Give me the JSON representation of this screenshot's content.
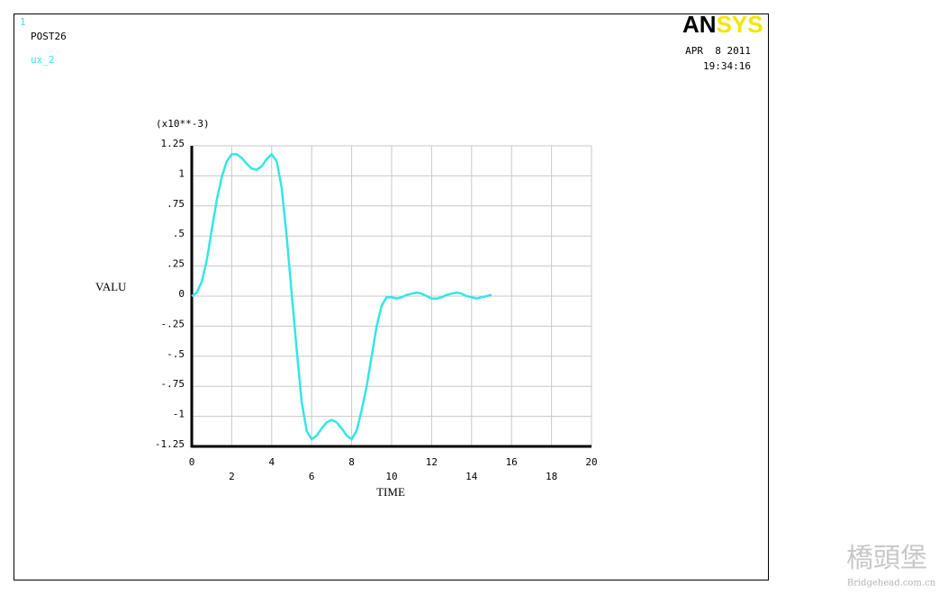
{
  "header": {
    "window_number": "1",
    "module": "POST26",
    "logo": "ANSYS",
    "date": "APR  8 2011",
    "time": "19:34:16"
  },
  "watermark": {
    "text": "橋頭堡",
    "site": "Bridgehead.com.cn"
  },
  "chart_data": {
    "type": "line",
    "multiplier": "(x10**-3)",
    "y_label": "VALU",
    "x_label": "TIME",
    "x": [
      0,
      0.25,
      0.5,
      0.75,
      1,
      1.25,
      1.5,
      1.75,
      2,
      2.25,
      2.5,
      2.75,
      3,
      3.25,
      3.5,
      3.75,
      4,
      4.25,
      4.5,
      4.75,
      5,
      5.25,
      5.5,
      5.75,
      6,
      6.25,
      6.5,
      6.75,
      7,
      7.25,
      7.5,
      7.75,
      8,
      8.25,
      8.5,
      8.75,
      9,
      9.25,
      9.5,
      9.75,
      10,
      10.25,
      10.5,
      10.75,
      11,
      11.25,
      11.5,
      11.75,
      12,
      12.25,
      12.5,
      12.75,
      13,
      13.25,
      13.5,
      13.75,
      14,
      14.25,
      14.5,
      14.75,
      15
    ],
    "series": [
      {
        "name": "ux_2",
        "color": "#33e6e6",
        "values": [
          0,
          0.03,
          0.12,
          0.3,
          0.55,
          0.8,
          0.99,
          1.12,
          1.18,
          1.18,
          1.15,
          1.1,
          1.06,
          1.05,
          1.08,
          1.14,
          1.18,
          1.12,
          0.9,
          0.5,
          0.02,
          -0.45,
          -0.88,
          -1.12,
          -1.19,
          -1.16,
          -1.1,
          -1.05,
          -1.03,
          -1.05,
          -1.1,
          -1.16,
          -1.19,
          -1.12,
          -0.95,
          -0.75,
          -0.5,
          -0.25,
          -0.08,
          -0.01,
          -0.01,
          -0.02,
          -0.01,
          0.01,
          0.02,
          0.03,
          0.02,
          0,
          -0.02,
          -0.02,
          -0.01,
          0.01,
          0.02,
          0.03,
          0.02,
          0,
          -0.01,
          -0.02,
          -0.01,
          0,
          0.01
        ]
      }
    ],
    "xlim": [
      0,
      20
    ],
    "xticks": [
      0,
      2,
      4,
      6,
      8,
      10,
      12,
      14,
      16,
      18,
      20
    ],
    "ylim": [
      -1.25,
      1.25
    ],
    "yticks": [
      1.25,
      1,
      {
        "value": 0.75,
        "label": ".75"
      },
      {
        "value": 0.5,
        "label": ".5"
      },
      {
        "value": 0.25,
        "label": ".25"
      },
      0,
      {
        "value": -0.25,
        "label": "-.25"
      },
      {
        "value": -0.5,
        "label": "-.5"
      },
      {
        "value": -0.75,
        "label": "-.75"
      },
      -1,
      -1.25
    ],
    "grid": true
  }
}
